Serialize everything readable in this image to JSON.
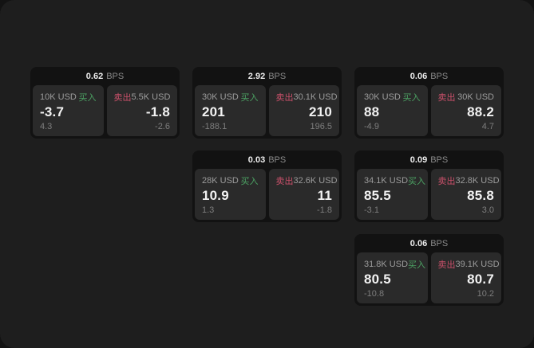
{
  "colors": {
    "buy-color": "#4ca263",
    "sell-color": "#c9506a",
    "surface": "#1e1e1e",
    "card": "#121212",
    "panel": "#2a2a2a"
  },
  "bps_unit": "BPS",
  "buy_label": "买入",
  "sell_label": "卖出",
  "cards": [
    {
      "bps": "0.62",
      "buy": {
        "amount": "10K USD",
        "value": "-3.7",
        "delta": "4.3"
      },
      "sell": {
        "amount": "5.5K USD",
        "value": "-1.8",
        "delta": "-2.6"
      }
    },
    {
      "bps": "2.92",
      "buy": {
        "amount": "30K USD",
        "value": "201",
        "delta": "-188.1"
      },
      "sell": {
        "amount": "30.1K USD",
        "value": "210",
        "delta": "196.5"
      }
    },
    {
      "bps": "0.06",
      "buy": {
        "amount": "30K USD",
        "value": "88",
        "delta": "-4.9"
      },
      "sell": {
        "amount": "30K USD",
        "value": "88.2",
        "delta": "4.7"
      }
    },
    {
      "bps": "0.03",
      "buy": {
        "amount": "28K USD",
        "value": "10.9",
        "delta": "1.3"
      },
      "sell": {
        "amount": "32.6K USD",
        "value": "11",
        "delta": "-1.8"
      }
    },
    {
      "bps": "0.09",
      "buy": {
        "amount": "34.1K USD",
        "value": "85.5",
        "delta": "-3.1"
      },
      "sell": {
        "amount": "32.8K USD",
        "value": "85.8",
        "delta": "3.0"
      }
    },
    {
      "bps": "0.06",
      "buy": {
        "amount": "31.8K USD",
        "value": "80.5",
        "delta": "-10.8"
      },
      "sell": {
        "amount": "39.1K USD",
        "value": "80.7",
        "delta": "10.2"
      }
    }
  ]
}
